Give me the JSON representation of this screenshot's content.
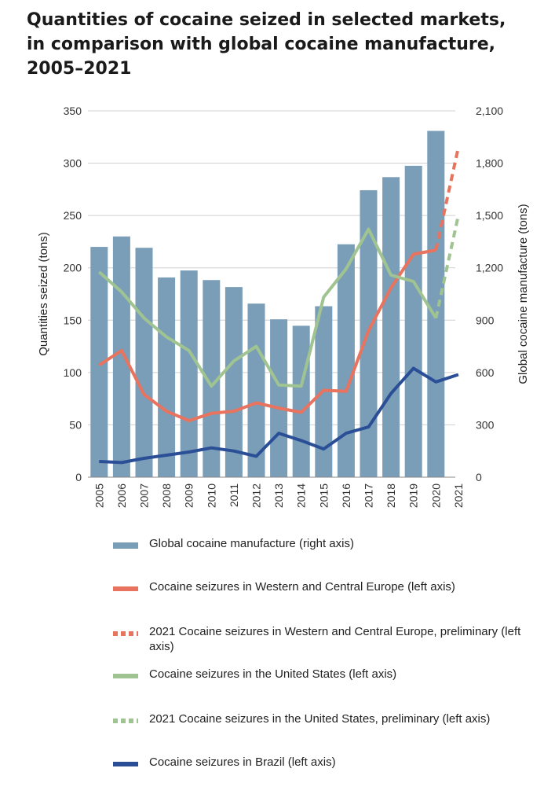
{
  "title": "Quantities of cocaine seized in selected markets, in comparison with global cocaine manufacture, 2005–2021",
  "colors": {
    "bars": "#7a9db8",
    "europe": "#e8735e",
    "us": "#9fc491",
    "brazil": "#2a4f96",
    "grid": "#cfcfcf"
  },
  "chart_data": {
    "type": "bar",
    "categories": [
      "2005",
      "2006",
      "2007",
      "2008",
      "2009",
      "2010",
      "2011",
      "2012",
      "2013",
      "2014",
      "2015",
      "2016",
      "2017",
      "2018",
      "2019",
      "2020",
      "2021"
    ],
    "ylabel": "Quantities seized (tons)",
    "ylabel_right": "Global cocaine manufacture (tons)",
    "ylim": [
      0,
      350
    ],
    "ylim_right": [
      0,
      2100
    ],
    "yticks": [
      "0",
      "50",
      "100",
      "150",
      "200",
      "250",
      "300",
      "350"
    ],
    "yticks_right": [
      "0",
      "300",
      "600",
      "900",
      "1,200",
      "1,500",
      "1,800",
      "2,100"
    ],
    "grid": true,
    "legend_position": "bottom",
    "series": [
      {
        "name": "Global cocaine manufacture (right axis)",
        "kind": "bar",
        "axis": "right",
        "values": [
          1320,
          1380,
          1315,
          1145,
          1185,
          1130,
          1090,
          995,
          905,
          868,
          980,
          1335,
          1645,
          1720,
          1785,
          1985,
          null
        ]
      },
      {
        "name": "Cocaine seizures in Western and Central Europe (left axis)",
        "kind": "line",
        "axis": "left",
        "values": [
          107,
          121,
          79,
          63,
          54,
          61,
          63,
          71,
          66,
          62,
          83,
          82,
          140,
          181,
          213,
          217,
          null
        ]
      },
      {
        "name": "2021 Cocaine seizures in Western and Central Europe, preliminary (left axis)",
        "kind": "dashed-line",
        "axis": "left",
        "x": [
          "2020",
          "2021"
        ],
        "values": [
          217,
          315
        ]
      },
      {
        "name": "Cocaine seizures in the United States (left axis)",
        "kind": "line",
        "axis": "left",
        "values": [
          196,
          177,
          152,
          134,
          121,
          87,
          111,
          125,
          88,
          87,
          172,
          199,
          237,
          193,
          187,
          152,
          null
        ]
      },
      {
        "name": "2021 Cocaine seizures in the United States, preliminary (left axis)",
        "kind": "dashed-line",
        "axis": "left",
        "x": [
          "2020",
          "2021"
        ],
        "values": [
          152,
          250
        ]
      },
      {
        "name": "Cocaine seizures in Brazil (left axis)",
        "kind": "line",
        "axis": "left",
        "values": [
          15,
          14,
          18,
          21,
          24,
          28,
          25,
          20,
          42,
          35,
          27,
          42,
          48,
          80,
          104,
          91,
          98
        ]
      }
    ]
  }
}
